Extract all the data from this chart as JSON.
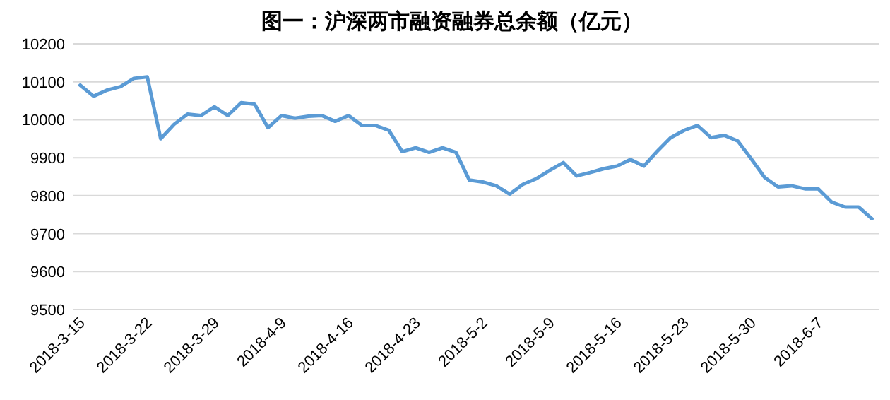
{
  "chart_data": {
    "type": "line",
    "title": "图一：沪深两市融资融券总余额（亿元）",
    "categories": [
      "2018-3-15",
      null,
      null,
      null,
      null,
      "2018-3-22",
      null,
      null,
      null,
      null,
      "2018-3-29",
      null,
      null,
      null,
      null,
      "2018-4-9",
      null,
      null,
      null,
      null,
      "2018-4-16",
      null,
      null,
      null,
      null,
      "2018-4-23",
      null,
      null,
      null,
      null,
      "2018-5-2",
      null,
      null,
      null,
      null,
      "2018-5-9",
      null,
      null,
      null,
      null,
      "2018-5-16",
      null,
      null,
      null,
      null,
      "2018-5-23",
      null,
      null,
      null,
      null,
      "2018-5-30",
      null,
      null,
      null,
      null,
      "2018-6-7",
      null,
      null,
      null,
      null
    ],
    "series": [
      {
        "color": "#5b9bd5",
        "values": [
          10091,
          10062,
          10078,
          10087,
          10109,
          10113,
          9950,
          9988,
          10015,
          10011,
          10034,
          10011,
          10045,
          10041,
          9979,
          10011,
          10004,
          10009,
          10011,
          9996,
          10011,
          9985,
          9985,
          9972,
          9916,
          9926,
          9914,
          9926,
          9914,
          9841,
          9836,
          9826,
          9804,
          9830,
          9845,
          9867,
          9887,
          9852,
          9861,
          9871,
          9878,
          9895,
          9878,
          9917,
          9953,
          9972,
          9985,
          9953,
          9959,
          9944,
          9897,
          9848,
          9823,
          9826,
          9818,
          9818,
          9783,
          9770,
          9770,
          9739
        ]
      }
    ],
    "ylim": [
      9500,
      10200
    ],
    "yticks": [
      9500,
      9600,
      9700,
      9800,
      9900,
      10000,
      10100,
      10200
    ],
    "grid": "y"
  }
}
